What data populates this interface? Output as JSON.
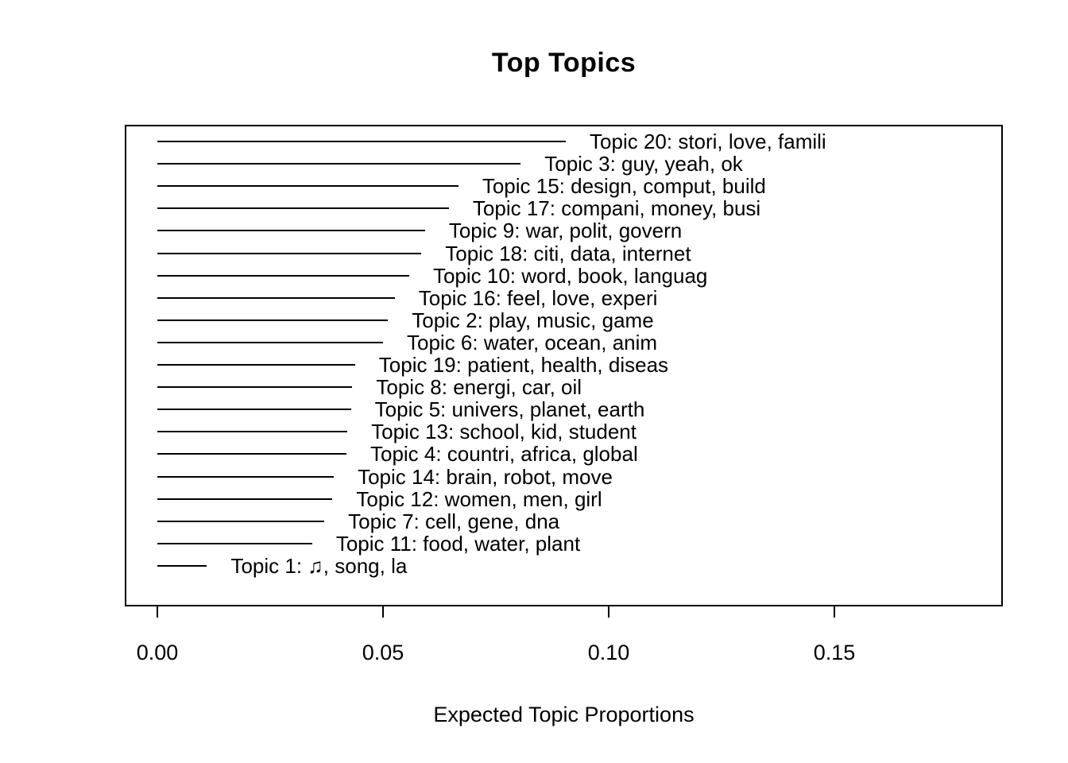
{
  "chart_data": {
    "type": "bar",
    "orientation": "horizontal",
    "title": "Top Topics",
    "xlabel": "Expected Topic Proportions",
    "ylabel": "",
    "xlim": [
      0,
      0.18
    ],
    "xticks": [
      0,
      0.05,
      0.1,
      0.15
    ],
    "xtick_labels": [
      "0.00",
      "0.05",
      "0.10",
      "0.15"
    ],
    "grid": false,
    "legend": false,
    "bar_color": "#000000",
    "background_color": "#ffffff",
    "topics": [
      {
        "label": "Topic 20: stori, love, famili",
        "value": 0.0905
      },
      {
        "label": "Topic 3: guy, yeah, ok",
        "value": 0.0805
      },
      {
        "label": "Topic 15: design, comput, build",
        "value": 0.0667
      },
      {
        "label": "Topic 17: compani, money, busi",
        "value": 0.0646
      },
      {
        "label": "Topic 9: war, polit, govern",
        "value": 0.0593
      },
      {
        "label": "Topic 18: citi, data, internet",
        "value": 0.0585
      },
      {
        "label": "Topic 10: word, book, languag",
        "value": 0.0558
      },
      {
        "label": "Topic 16: feel, love, experi",
        "value": 0.0526
      },
      {
        "label": "Topic 2: play, music, game",
        "value": 0.0511
      },
      {
        "label": "Topic 6: water, ocean, anim",
        "value": 0.05
      },
      {
        "label": "Topic 19: patient, health, diseas",
        "value": 0.0438
      },
      {
        "label": "Topic 8: energi, car, oil",
        "value": 0.0432
      },
      {
        "label": "Topic 5: univers, planet, earth",
        "value": 0.0429
      },
      {
        "label": "Topic 13: school, kid, student",
        "value": 0.0421
      },
      {
        "label": "Topic 4: countri, africa, global",
        "value": 0.0419
      },
      {
        "label": "Topic 14: brain, robot, move",
        "value": 0.0391
      },
      {
        "label": "Topic 12: women, men, girl",
        "value": 0.0388
      },
      {
        "label": "Topic 7: cell, gene, dna",
        "value": 0.037
      },
      {
        "label": "Topic 11: food, water, plant",
        "value": 0.0343
      },
      {
        "label": "Topic 1: ♫, song, la",
        "value": 0.011
      }
    ]
  }
}
